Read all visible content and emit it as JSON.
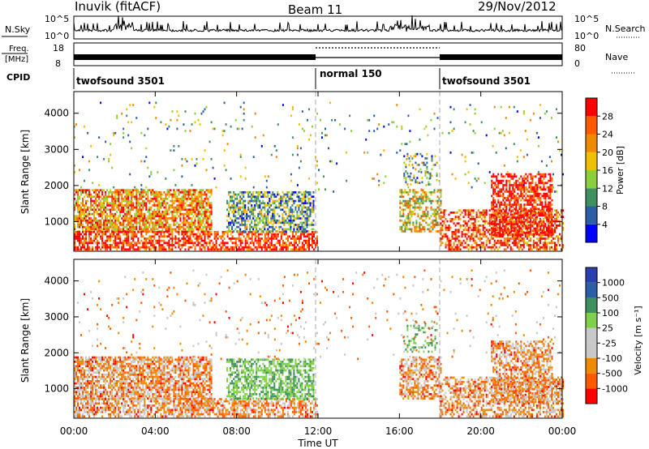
{
  "header": {
    "station": "Inuvik (fitACF)",
    "beam": "Beam 11",
    "date": "29/Nov/2012"
  },
  "noise_panel": {
    "left_label": "N.Sky",
    "right_label": "N.Search",
    "left_ticks": [
      "10^5",
      "10^0"
    ],
    "right_ticks": [
      "10^5",
      "10^0"
    ]
  },
  "freq_panel": {
    "left_label_line1": "Freq.",
    "left_label_line2": "[MHz]",
    "right_label": "Nave",
    "left_ticks": [
      "18",
      "8"
    ],
    "right_ticks": [
      "80",
      "0"
    ]
  },
  "cpid_panel": {
    "label": "CPID",
    "segments": [
      {
        "name": "twofsound 3501",
        "start": "00:00",
        "end": "12:00"
      },
      {
        "name": "normal 150",
        "start": "12:00",
        "end": "18:00"
      },
      {
        "name": "twofsound 3501",
        "start": "18:00",
        "end": "24:00"
      }
    ]
  },
  "colors": {
    "power_scale": [
      "#0000ff",
      "#2c5fa8",
      "#3f8f5f",
      "#8ccf3c",
      "#f0c000",
      "#f08a00",
      "#ff5a00",
      "#ff0000"
    ],
    "velocity_scale": [
      "#ff0000",
      "#ff5a00",
      "#f08a00",
      "#c8c8c8",
      "#c8c8c8",
      "#7fd04a",
      "#3f8f5f",
      "#2c5fa8",
      "#2a3fb0"
    ]
  },
  "chart_data": [
    {
      "type": "heatmap",
      "name": "power",
      "ylabel": "Slant Range [km]",
      "xlabel": "",
      "ylim": [
        180,
        4600
      ],
      "xlim": [
        0,
        24
      ],
      "yticks": [
        "1000",
        "2000",
        "3000",
        "4000"
      ],
      "colorbar_label": "Power [dB]",
      "colorbar_ticks": [
        "4",
        "8",
        "12",
        "16",
        "20",
        "24",
        "28"
      ]
    },
    {
      "type": "heatmap",
      "name": "velocity",
      "ylabel": "Slant Range [km]",
      "xlabel": "Time UT",
      "ylim": [
        180,
        4600
      ],
      "xlim": [
        0,
        24
      ],
      "yticks": [
        "1000",
        "2000",
        "3000",
        "4000"
      ],
      "xticks": [
        "00:00",
        "04:00",
        "08:00",
        "12:00",
        "16:00",
        "20:00",
        "00:00"
      ],
      "colorbar_label": "Velocity [m s⁻¹]",
      "colorbar_ticks": [
        "1000",
        "500",
        "100",
        "25",
        "-25",
        "-100",
        "-500",
        "-1000"
      ]
    }
  ]
}
